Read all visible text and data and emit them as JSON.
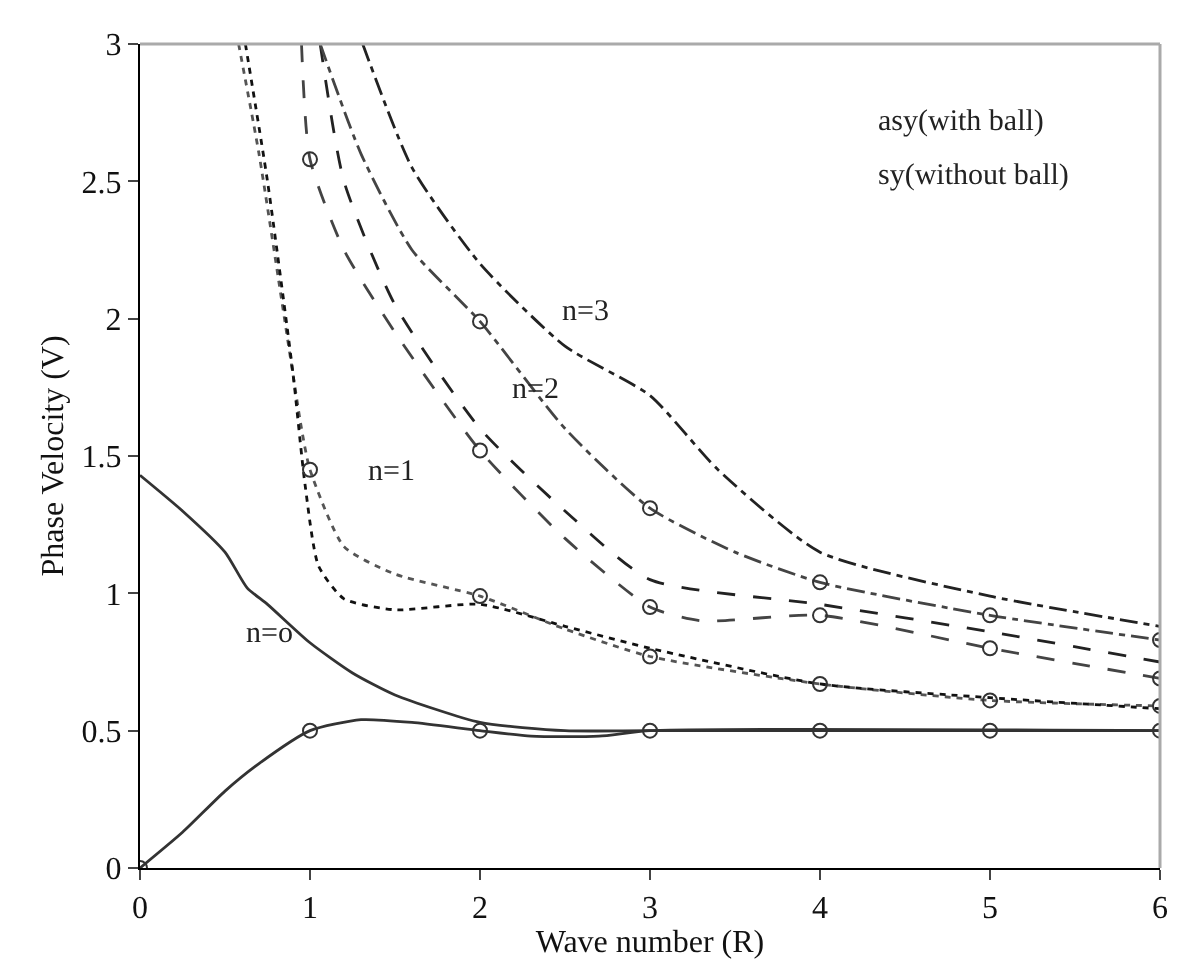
{
  "chart_data": {
    "type": "line",
    "xlabel": "Wave number (R)",
    "ylabel": "Phase Velocity (V)",
    "xlim": [
      0,
      6
    ],
    "ylim": [
      0,
      3
    ],
    "xticks": [
      0,
      1,
      2,
      3,
      4,
      5,
      6
    ],
    "yticks": [
      0,
      0.5,
      1,
      1.5,
      2,
      2.5,
      3
    ],
    "series": [
      {
        "color": "#333333",
        "line_style": "solid",
        "marker": "none",
        "x": [
          0,
          0.25,
          0.5,
          0.63,
          0.75,
          1,
          1.25,
          1.5,
          2,
          2.5,
          3,
          6
        ],
        "values": [
          1.43,
          1.3,
          1.15,
          1.02,
          0.96,
          0.82,
          0.71,
          0.63,
          0.53,
          0.5,
          0.5,
          0.5
        ]
      },
      {
        "color": "#333333",
        "line_style": "solid",
        "marker": "none",
        "x": [
          0,
          0.25,
          0.5,
          0.7,
          1,
          1.3,
          1.6,
          2,
          2.3,
          2.7,
          3,
          6
        ],
        "values": [
          0,
          0.13,
          0.28,
          0.38,
          0.5,
          0.54,
          0.53,
          0.5,
          0.48,
          0.48,
          0.5,
          0.5
        ]
      },
      {
        "color": "#555555",
        "line_style": "dotted",
        "marker": "none",
        "x": [
          0.58,
          0.7,
          0.85,
          0.95,
          1,
          1.2,
          1.5,
          2,
          2.5,
          3,
          4,
          5,
          6
        ],
        "values": [
          3,
          2.6,
          2.0,
          1.6,
          1.45,
          1.17,
          1.07,
          0.99,
          0.87,
          0.77,
          0.67,
          0.61,
          0.59
        ]
      },
      {
        "color": "#111111",
        "line_style": "dotted",
        "marker": "none",
        "x": [
          0.62,
          0.75,
          0.9,
          0.97,
          1.05,
          1.2,
          1.5,
          2,
          2.5,
          3,
          4,
          5,
          6
        ],
        "values": [
          3,
          2.5,
          1.8,
          1.4,
          1.1,
          0.98,
          0.94,
          0.96,
          0.88,
          0.8,
          0.67,
          0.62,
          0.58
        ]
      },
      {
        "color": "#444444",
        "line_style": "dashed",
        "marker": "none",
        "x": [
          0.95,
          1,
          1.2,
          1.5,
          2,
          2.5,
          3,
          3.3,
          4,
          5,
          6
        ],
        "values": [
          3,
          2.58,
          2.25,
          1.95,
          1.52,
          1.2,
          0.95,
          0.9,
          0.92,
          0.8,
          0.69
        ]
      },
      {
        "color": "#222222",
        "line_style": "dashed",
        "marker": "none",
        "x": [
          1.06,
          1.2,
          1.5,
          2,
          2.5,
          3,
          4,
          5,
          6
        ],
        "values": [
          3,
          2.5,
          2.05,
          1.6,
          1.3,
          1.05,
          0.96,
          0.86,
          0.75
        ]
      },
      {
        "color": "#444444",
        "line_style": "dashdot",
        "marker": "none",
        "x": [
          1.06,
          1.3,
          1.6,
          2,
          2.5,
          3,
          3.5,
          4,
          5,
          6
        ],
        "values": [
          3,
          2.6,
          2.25,
          1.99,
          1.6,
          1.31,
          1.15,
          1.04,
          0.92,
          0.83
        ]
      },
      {
        "color": "#222222",
        "line_style": "dashdot",
        "marker": "none",
        "x": [
          1.31,
          1.6,
          2,
          2.5,
          3,
          3.4,
          4,
          5,
          6
        ],
        "values": [
          3,
          2.55,
          2.2,
          1.9,
          1.72,
          1.45,
          1.15,
          0.99,
          0.88
        ]
      },
      {
        "type": "scatter",
        "color": "#333333",
        "marker": "circle",
        "x": [
          0,
          1,
          2,
          3,
          4,
          5,
          6,
          1,
          2,
          3,
          4,
          5,
          6,
          1,
          2,
          3,
          4,
          5,
          6,
          2,
          3,
          4,
          5,
          6
        ],
        "values": [
          0,
          0.5,
          0.5,
          0.5,
          0.5,
          0.5,
          0.5,
          1.45,
          0.99,
          0.77,
          0.67,
          0.61,
          0.59,
          2.58,
          1.52,
          0.95,
          0.92,
          0.8,
          0.69,
          1.99,
          1.31,
          1.04,
          0.92,
          0.83
        ]
      }
    ],
    "annotations": [
      "n=o",
      "n=1",
      "n=2",
      "n=3",
      "asy(with ball)",
      "sy(without ball)"
    ]
  }
}
